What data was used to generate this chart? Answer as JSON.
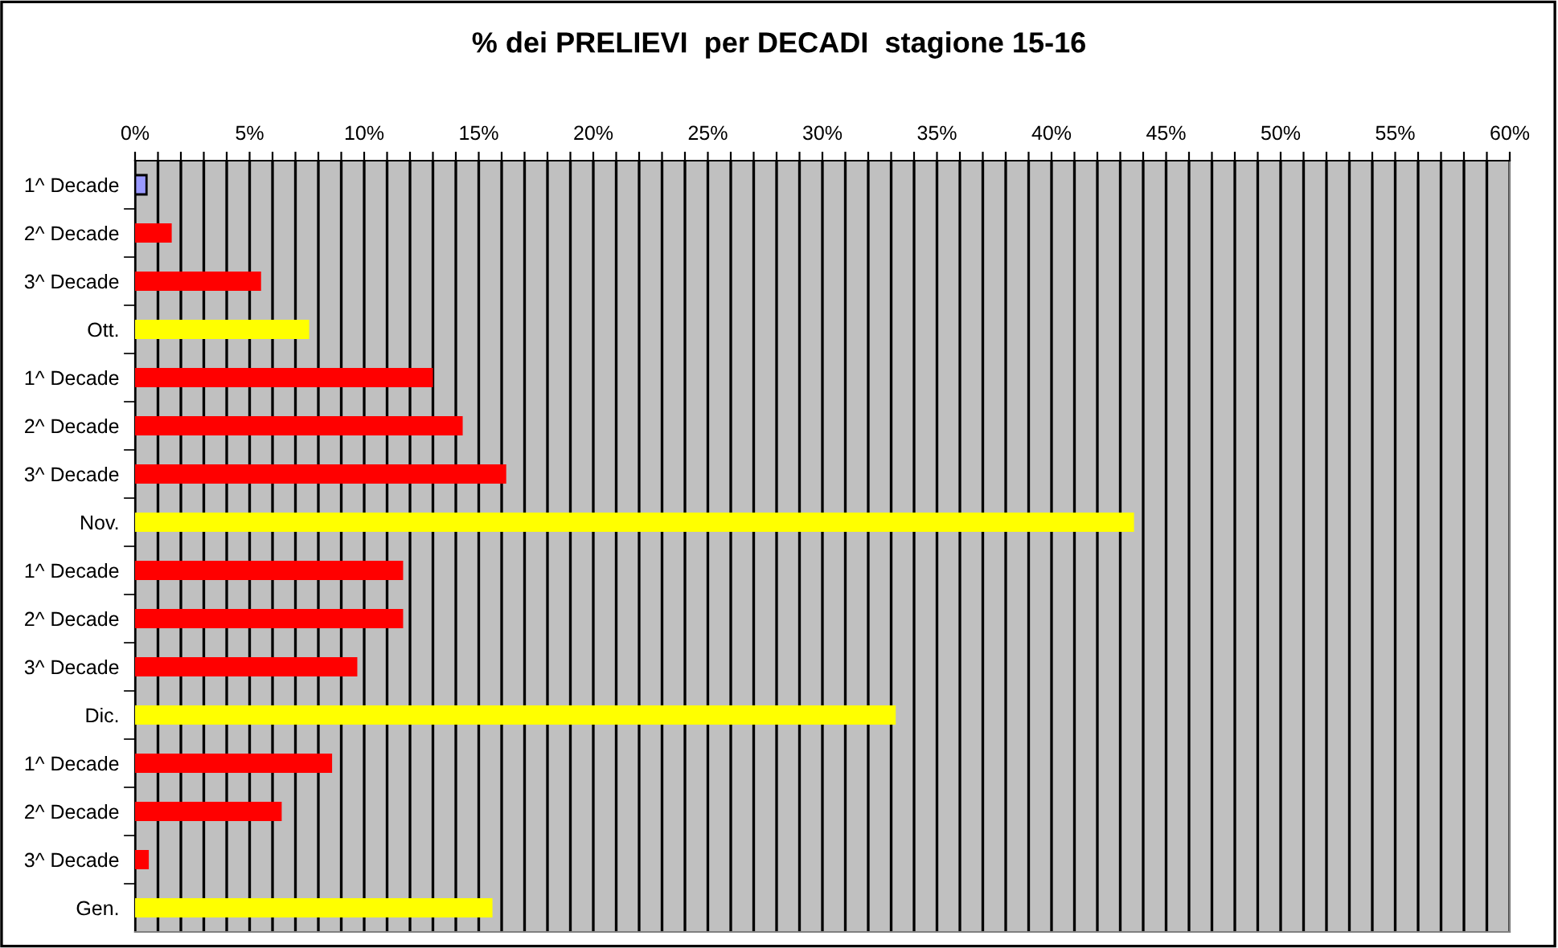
{
  "chart_data": {
    "type": "bar",
    "orientation": "horizontal",
    "title": "% dei PRELIEVI  per DECADI  stagione 15-16",
    "categories": [
      "1^ Decade",
      "2^ Decade",
      "3^ Decade",
      "Ott.",
      "1^ Decade",
      "2^ Decade",
      "3^ Decade",
      "Nov.",
      "1^ Decade",
      "2^ Decade",
      "3^ Decade",
      "Dic.",
      "1^ Decade",
      "2^ Decade",
      "3^ Decade",
      "Gen."
    ],
    "values": [
      0.5,
      1.6,
      5.5,
      7.6,
      13.0,
      14.3,
      16.2,
      43.6,
      11.7,
      11.7,
      9.7,
      33.2,
      8.6,
      6.4,
      0.6,
      15.6
    ],
    "colors": [
      "#9999ff",
      "#ff0000",
      "#ff0000",
      "#ffff00",
      "#ff0000",
      "#ff0000",
      "#ff0000",
      "#ffff00",
      "#ff0000",
      "#ff0000",
      "#ff0000",
      "#ffff00",
      "#ff0000",
      "#ff0000",
      "#ff0000",
      "#ffff00"
    ],
    "xlim": [
      0,
      60
    ],
    "xticks": [
      {
        "value": 0,
        "label": "0%"
      },
      {
        "value": 1,
        "label": null
      },
      {
        "value": 2,
        "label": null
      },
      {
        "value": 3,
        "label": null
      },
      {
        "value": 4,
        "label": null
      },
      {
        "value": 5,
        "label": "5%"
      },
      {
        "value": 6,
        "label": null
      },
      {
        "value": 7,
        "label": null
      },
      {
        "value": 8,
        "label": null
      },
      {
        "value": 9,
        "label": null
      },
      {
        "value": 10,
        "label": "10%"
      },
      {
        "value": 11,
        "label": null
      },
      {
        "value": 12,
        "label": null
      },
      {
        "value": 13,
        "label": null
      },
      {
        "value": 14,
        "label": null
      },
      {
        "value": 15,
        "label": "15%"
      },
      {
        "value": 16,
        "label": null
      },
      {
        "value": 17,
        "label": null
      },
      {
        "value": 18,
        "label": null
      },
      {
        "value": 19,
        "label": null
      },
      {
        "value": 20,
        "label": "20%"
      },
      {
        "value": 21,
        "label": null
      },
      {
        "value": 22,
        "label": null
      },
      {
        "value": 23,
        "label": null
      },
      {
        "value": 24,
        "label": null
      },
      {
        "value": 25,
        "label": "25%"
      },
      {
        "value": 26,
        "label": null
      },
      {
        "value": 27,
        "label": null
      },
      {
        "value": 28,
        "label": null
      },
      {
        "value": 29,
        "label": null
      },
      {
        "value": 30,
        "label": "30%"
      },
      {
        "value": 31,
        "label": null
      },
      {
        "value": 32,
        "label": null
      },
      {
        "value": 33,
        "label": null
      },
      {
        "value": 34,
        "label": null
      },
      {
        "value": 35,
        "label": "35%"
      },
      {
        "value": 36,
        "label": null
      },
      {
        "value": 37,
        "label": null
      },
      {
        "value": 38,
        "label": null
      },
      {
        "value": 39,
        "label": null
      },
      {
        "value": 40,
        "label": "40%"
      },
      {
        "value": 41,
        "label": null
      },
      {
        "value": 42,
        "label": null
      },
      {
        "value": 43,
        "label": null
      },
      {
        "value": 44,
        "label": null
      },
      {
        "value": 45,
        "label": "45%"
      },
      {
        "value": 46,
        "label": null
      },
      {
        "value": 47,
        "label": null
      },
      {
        "value": 48,
        "label": null
      },
      {
        "value": 49,
        "label": null
      },
      {
        "value": 50,
        "label": "50%"
      },
      {
        "value": 51,
        "label": null
      },
      {
        "value": 52,
        "label": null
      },
      {
        "value": 53,
        "label": null
      },
      {
        "value": 54,
        "label": null
      },
      {
        "value": 55,
        "label": "55%"
      },
      {
        "value": 56,
        "label": null
      },
      {
        "value": 57,
        "label": null
      },
      {
        "value": 58,
        "label": null
      },
      {
        "value": 59,
        "label": null
      },
      {
        "value": 60,
        "label": "60%"
      }
    ],
    "grid": "x"
  }
}
